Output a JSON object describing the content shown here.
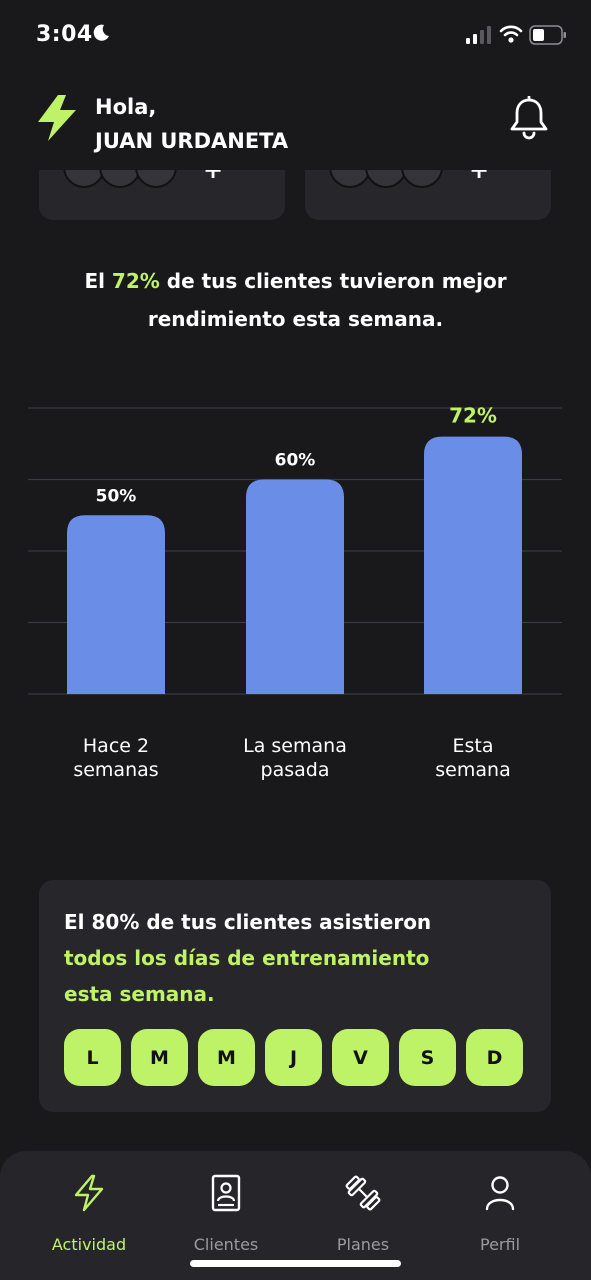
{
  "status_bar": {
    "time": "3:04"
  },
  "header": {
    "greeting": "Hola,",
    "user_name": "JUAN URDANETA"
  },
  "headline": {
    "prefix": "El ",
    "highlight": "72%",
    "rest_line1": " de tus clientes tuvieron mejor",
    "line2": "rendimiento esta semana."
  },
  "chart_data": {
    "type": "bar",
    "categories": [
      [
        "Hace 2",
        "semanas"
      ],
      [
        "La semana",
        "pasada"
      ],
      [
        "Esta",
        "semana"
      ]
    ],
    "values": [
      50,
      60,
      72
    ],
    "value_labels": [
      "50%",
      "60%",
      "72%"
    ],
    "highlight_index": 2,
    "ylim": [
      0,
      80
    ],
    "grid": true,
    "bar_color": "#6a8ee8",
    "highlight_label_color": "#bff367"
  },
  "attendance": {
    "line1": "El 80% de tus clientes asistieron",
    "line2": "todos los días de entrenamiento",
    "line3": "esta semana.",
    "days": [
      "L",
      "M",
      "M",
      "J",
      "V",
      "S",
      "D"
    ]
  },
  "nav": {
    "items": [
      {
        "label": "Actividad",
        "icon": "bolt-icon",
        "active": true
      },
      {
        "label": "Clientes",
        "icon": "contact-book-icon",
        "active": false
      },
      {
        "label": "Planes",
        "icon": "dumbbell-icon",
        "active": false
      },
      {
        "label": "Perfil",
        "icon": "person-icon",
        "active": false
      }
    ]
  },
  "colors": {
    "accent": "#bff367",
    "background": "#19191b",
    "card": "#27272b",
    "bar": "#6a8ee8"
  }
}
